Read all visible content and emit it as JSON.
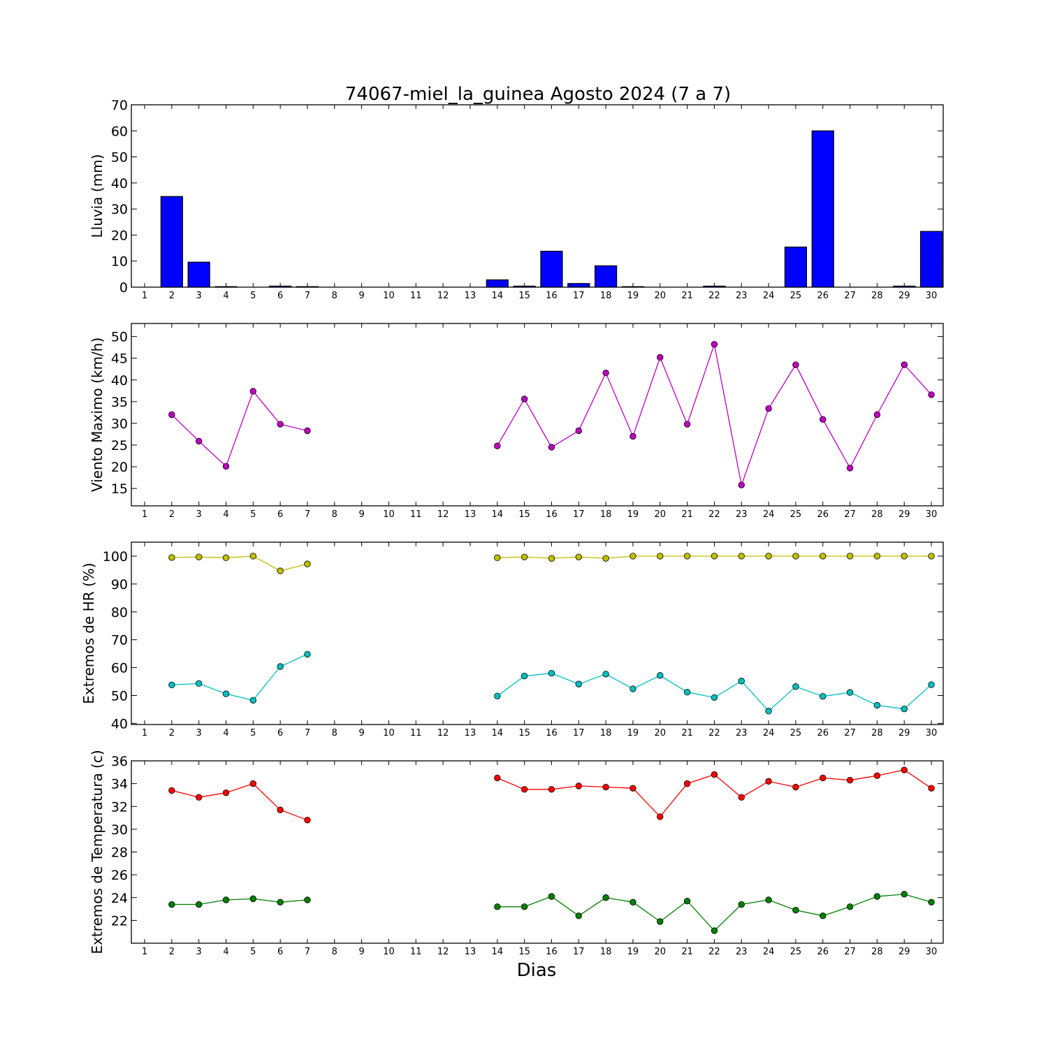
{
  "figure": {
    "title": "74067-miel_la_guinea Agosto 2024  (7 a 7)",
    "xlabel": "Dias"
  },
  "chart_data": [
    {
      "type": "bar",
      "ylabel": "Lluvia (mm)",
      "ylim": [
        0,
        70
      ],
      "yticks": [
        0,
        10,
        20,
        30,
        40,
        50,
        60,
        70
      ],
      "x": [
        1,
        2,
        3,
        4,
        5,
        6,
        7,
        8,
        9,
        10,
        11,
        12,
        13,
        14,
        15,
        16,
        17,
        18,
        19,
        20,
        21,
        22,
        23,
        24,
        25,
        26,
        27,
        28,
        29,
        30
      ],
      "series": [
        {
          "color": "#0000ff",
          "values": [
            0,
            34.8,
            9.6,
            0.2,
            0,
            0.4,
            0.2,
            null,
            null,
            null,
            null,
            null,
            null,
            2.8,
            0.4,
            13.8,
            1.4,
            8.2,
            0.2,
            0,
            0,
            0.4,
            0,
            0,
            15.4,
            60,
            0,
            0,
            0.4,
            21.4
          ]
        }
      ]
    },
    {
      "type": "line",
      "ylabel": "Viento Maximo (km/h)",
      "ylim": [
        11,
        53
      ],
      "yticks": [
        15,
        20,
        25,
        30,
        35,
        40,
        45,
        50
      ],
      "x": [
        1,
        2,
        3,
        4,
        5,
        6,
        7,
        8,
        9,
        10,
        11,
        12,
        13,
        14,
        15,
        16,
        17,
        18,
        19,
        20,
        21,
        22,
        23,
        24,
        25,
        26,
        27,
        28,
        29,
        30
      ],
      "series": [
        {
          "color": "#bf00bf",
          "values": [
            null,
            32.0,
            25.9,
            20.1,
            37.4,
            29.8,
            28.3,
            null,
            null,
            null,
            null,
            null,
            null,
            24.8,
            35.6,
            24.5,
            28.3,
            41.6,
            27.0,
            45.2,
            29.8,
            48.2,
            15.8,
            33.4,
            43.5,
            30.9,
            19.7,
            32.0,
            43.5,
            36.6
          ]
        }
      ]
    },
    {
      "type": "line",
      "ylabel": "Extremos de HR (%)",
      "ylim": [
        39.6,
        105
      ],
      "yticks": [
        40,
        50,
        60,
        70,
        80,
        90,
        100
      ],
      "x": [
        1,
        2,
        3,
        4,
        5,
        6,
        7,
        8,
        9,
        10,
        11,
        12,
        13,
        14,
        15,
        16,
        17,
        18,
        19,
        20,
        21,
        22,
        23,
        24,
        25,
        26,
        27,
        28,
        29,
        30
      ],
      "series": [
        {
          "color": "#bfbf00",
          "values": [
            null,
            99.5,
            99.7,
            99.4,
            100,
            94.7,
            97.2,
            null,
            null,
            null,
            null,
            null,
            null,
            99.4,
            99.7,
            99.2,
            99.7,
            99.2,
            100,
            100,
            100,
            100,
            100,
            100,
            100,
            100,
            100,
            100,
            100,
            100
          ]
        },
        {
          "color": "#00bfbf",
          "values": [
            null,
            53.8,
            54.3,
            50.6,
            48.3,
            60.4,
            64.8,
            null,
            null,
            null,
            null,
            null,
            null,
            49.8,
            57.0,
            58.0,
            54.1,
            57.7,
            52.4,
            57.2,
            51.2,
            49.3,
            55.2,
            44.4,
            53.2,
            49.7,
            51.1,
            46.5,
            45.2,
            53.9
          ]
        }
      ]
    },
    {
      "type": "line",
      "ylabel": "Extremos de Temperatura (c)",
      "ylim": [
        20,
        36
      ],
      "yticks": [
        22,
        24,
        26,
        28,
        30,
        32,
        34,
        36
      ],
      "x": [
        1,
        2,
        3,
        4,
        5,
        6,
        7,
        8,
        9,
        10,
        11,
        12,
        13,
        14,
        15,
        16,
        17,
        18,
        19,
        20,
        21,
        22,
        23,
        24,
        25,
        26,
        27,
        28,
        29,
        30
      ],
      "series": [
        {
          "color": "#ff0000",
          "values": [
            null,
            33.4,
            32.8,
            33.2,
            34.0,
            31.7,
            30.8,
            null,
            null,
            null,
            null,
            null,
            null,
            34.5,
            33.5,
            33.5,
            33.8,
            33.7,
            33.6,
            31.1,
            34.0,
            34.8,
            32.8,
            34.2,
            33.7,
            34.5,
            34.3,
            34.7,
            35.2,
            33.6
          ]
        },
        {
          "color": "#007f00",
          "values": [
            null,
            23.4,
            23.4,
            23.8,
            23.9,
            23.6,
            23.8,
            null,
            null,
            null,
            null,
            null,
            null,
            23.2,
            23.2,
            24.1,
            22.4,
            24.0,
            23.6,
            21.9,
            23.7,
            21.1,
            23.4,
            23.8,
            22.9,
            22.4,
            23.2,
            24.1,
            24.3,
            23.6
          ]
        }
      ]
    }
  ]
}
